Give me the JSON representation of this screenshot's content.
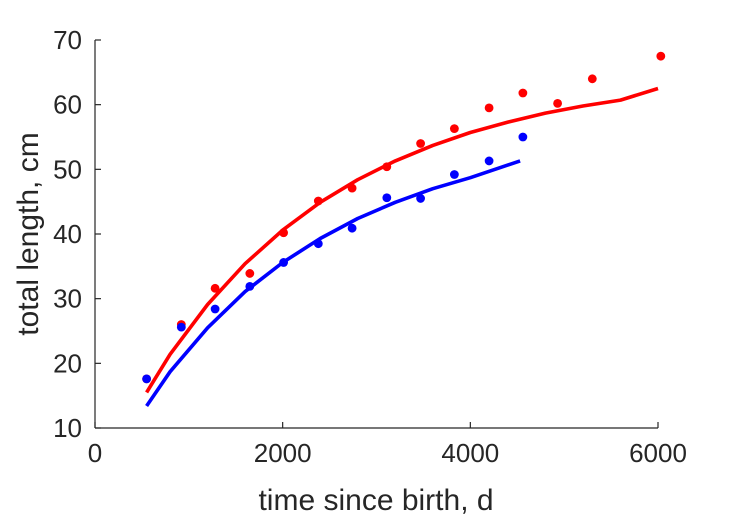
{
  "chart_data": {
    "type": "scatter",
    "xlabel": "time since birth, d",
    "ylabel": "total length, cm",
    "xlim": [
      0,
      6000
    ],
    "ylim": [
      10,
      70
    ],
    "xticks": [
      0,
      2000,
      4000,
      6000
    ],
    "yticks": [
      10,
      20,
      30,
      40,
      50,
      60,
      70
    ],
    "xtick_labels": [
      "0",
      "2000",
      "4000",
      "6000"
    ],
    "ytick_labels": [
      "10",
      "20",
      "30",
      "40",
      "50",
      "60",
      "70"
    ],
    "grid": false,
    "series": [
      {
        "kind": "points",
        "color": "#ff0000",
        "x": [
          550,
          920,
          1280,
          1650,
          2010,
          2380,
          2740,
          3110,
          3470,
          3830,
          4200,
          4560,
          4930,
          5300,
          6030
        ],
        "y": [
          17.6,
          26.0,
          31.6,
          33.9,
          40.2,
          45.1,
          47.1,
          50.4,
          54.0,
          56.3,
          59.5,
          61.8,
          60.2,
          64.0,
          67.5
        ]
      },
      {
        "kind": "points",
        "color": "#0000ff",
        "x": [
          550,
          920,
          1280,
          1650,
          2010,
          2380,
          2740,
          3110,
          3470,
          3830,
          4200,
          4560
        ],
        "y": [
          17.6,
          25.6,
          28.4,
          31.9,
          35.6,
          38.5,
          40.9,
          45.6,
          45.5,
          49.2,
          51.3,
          55.0
        ]
      },
      {
        "kind": "line",
        "color": "#ff0000",
        "x": [
          550,
          800,
          1200,
          1600,
          2000,
          2400,
          2800,
          3200,
          3600,
          4000,
          4400,
          4800,
          5200,
          5600,
          6000
        ],
        "y": [
          15.5,
          21.4,
          29.1,
          35.4,
          40.6,
          44.9,
          48.4,
          51.3,
          53.7,
          55.7,
          57.3,
          58.7,
          59.8,
          60.7,
          62.5
        ]
      },
      {
        "kind": "line",
        "color": "#0000ff",
        "x": [
          550,
          800,
          1200,
          1600,
          2000,
          2400,
          2800,
          3200,
          3600,
          4000,
          4530
        ],
        "y": [
          13.4,
          18.7,
          25.5,
          31.1,
          35.6,
          39.3,
          42.4,
          44.9,
          47.0,
          48.7,
          51.3
        ]
      }
    ]
  }
}
